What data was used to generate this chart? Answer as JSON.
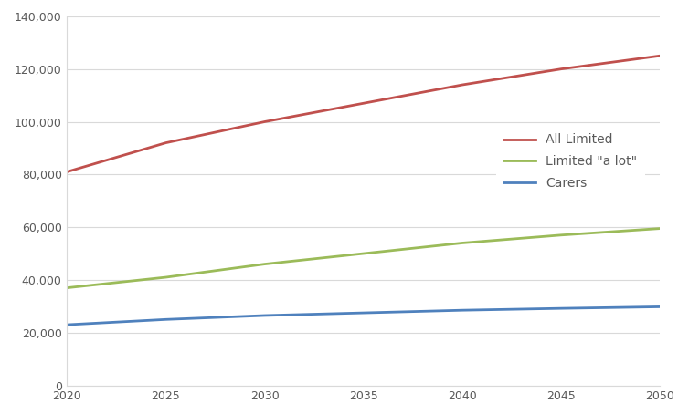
{
  "years": [
    2020,
    2025,
    2030,
    2035,
    2040,
    2045,
    2050
  ],
  "all_limited": [
    81000,
    92000,
    100000,
    107000,
    114000,
    120000,
    125000
  ],
  "limited_a_lot": [
    37000,
    41000,
    46000,
    50000,
    54000,
    57000,
    59500
  ],
  "carers": [
    23000,
    25000,
    26500,
    27500,
    28500,
    29200,
    29800
  ],
  "colors": {
    "all_limited": "#C0504D",
    "limited_a_lot": "#9BBB59",
    "carers": "#4F81BD"
  },
  "legend_labels": [
    "All Limited",
    "Limited \"a lot\"",
    "Carers"
  ],
  "ylim": [
    0,
    140000
  ],
  "yticks": [
    0,
    20000,
    40000,
    60000,
    80000,
    100000,
    120000,
    140000
  ],
  "xlim": [
    2020,
    2050
  ],
  "xticks": [
    2020,
    2025,
    2030,
    2035,
    2040,
    2045,
    2050
  ],
  "line_width": 2.0,
  "background_color": "#FFFFFF",
  "grid_color": "#D9D9D9",
  "border_color": "#BFBFBF",
  "tick_label_color": "#595959",
  "legend_text_color": "#595959",
  "outer_border_color": "#7F7F7F"
}
